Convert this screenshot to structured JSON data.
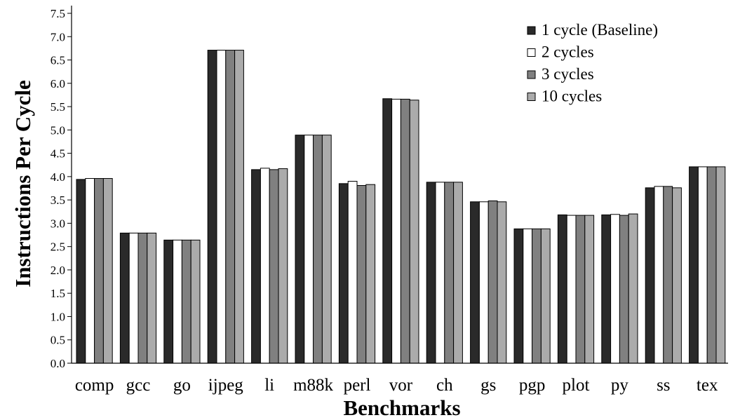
{
  "chart_data": {
    "type": "bar",
    "title": "",
    "xlabel": "Benchmarks",
    "ylabel": "Instructions Per Cycle",
    "ylim": [
      0,
      7.5
    ],
    "ytick_step": 0.5,
    "ytick_labels": [
      "0.0",
      "0.5",
      "1.0",
      "1.5",
      "2.0",
      "2.5",
      "3.0",
      "3.5",
      "4.0",
      "4.5",
      "5.0",
      "5.5",
      "6.0",
      "6.5",
      "7.0",
      "7.5"
    ],
    "grid": false,
    "legend_position": "top-right",
    "categories": [
      "comp",
      "gcc",
      "go",
      "ijpeg",
      "li",
      "m88k",
      "perl",
      "vor",
      "ch",
      "gs",
      "pgp",
      "plot",
      "py",
      "ss",
      "tex"
    ],
    "series": [
      {
        "name": "1 cycle (Baseline)",
        "color": "#2a2a2a",
        "values": [
          3.94,
          2.79,
          2.64,
          6.71,
          4.15,
          4.89,
          3.85,
          5.67,
          3.88,
          3.46,
          2.88,
          3.18,
          3.18,
          3.76,
          4.21
        ]
      },
      {
        "name": "2 cycles",
        "color": "#ffffff",
        "values": [
          3.96,
          2.79,
          2.64,
          6.71,
          4.18,
          4.89,
          3.9,
          5.66,
          3.88,
          3.46,
          2.88,
          3.17,
          3.19,
          3.79,
          4.21
        ]
      },
      {
        "name": "3 cycles",
        "color": "#808080",
        "values": [
          3.96,
          2.79,
          2.64,
          6.71,
          4.15,
          4.89,
          3.81,
          5.66,
          3.88,
          3.48,
          2.88,
          3.17,
          3.17,
          3.79,
          4.21
        ]
      },
      {
        "name": "10 cycles",
        "color": "#ababab",
        "values": [
          3.96,
          2.79,
          2.64,
          6.71,
          4.17,
          4.89,
          3.83,
          5.64,
          3.88,
          3.46,
          2.88,
          3.17,
          3.2,
          3.76,
          4.21
        ]
      }
    ]
  }
}
